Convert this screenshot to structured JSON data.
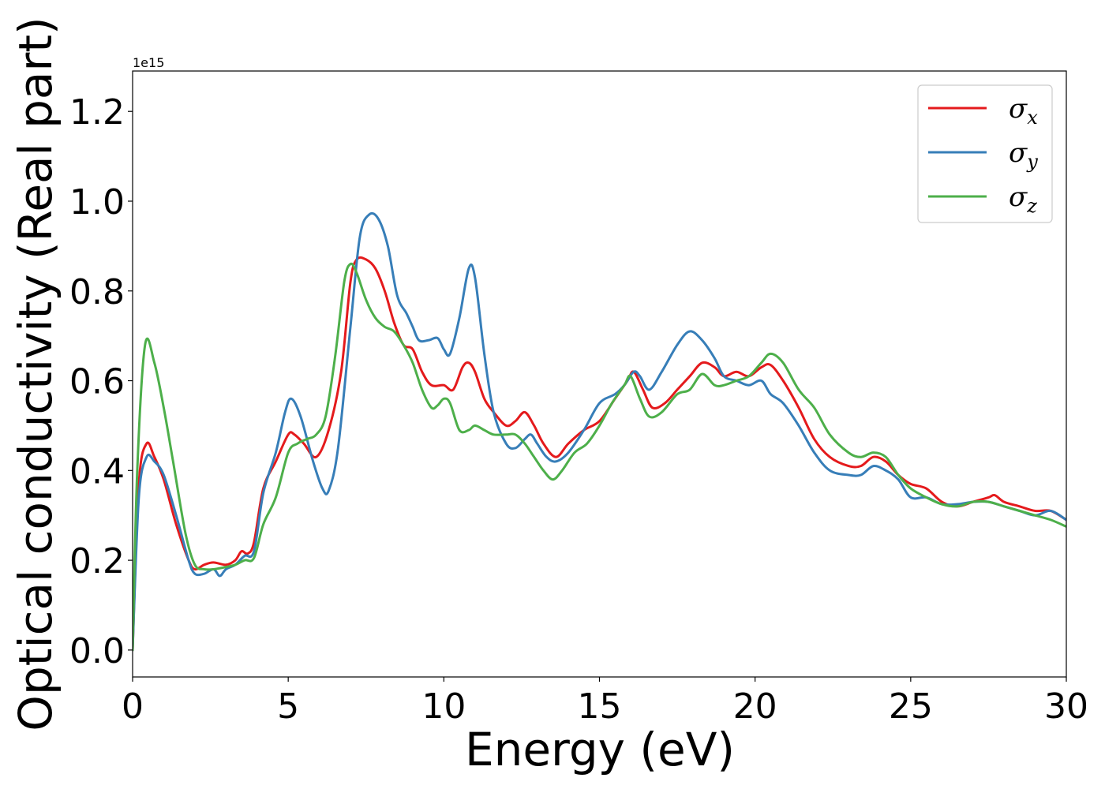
{
  "chart_data": {
    "type": "line",
    "xlabel": "Energy (eV)",
    "ylabel": "Optical conductivity (Real part)",
    "y_offset_label": "1e15",
    "xlim": [
      0,
      30
    ],
    "ylim": [
      -0.06,
      1.29
    ],
    "xticks": [
      0,
      5,
      10,
      15,
      20,
      25,
      30
    ],
    "yticks": [
      0.0,
      0.2,
      0.4,
      0.6,
      0.8,
      1.0,
      1.2
    ],
    "xtick_labels": [
      "0",
      "5",
      "10",
      "15",
      "20",
      "25",
      "30"
    ],
    "ytick_labels": [
      "0.0",
      "0.2",
      "0.4",
      "0.6",
      "0.8",
      "1.0",
      "1.2"
    ],
    "grid": false,
    "legend_position": "top-right",
    "series": [
      {
        "name": "σx",
        "symbol": "σ",
        "subscript": "x",
        "color": "#e41a1c",
        "x": [
          0,
          0.2,
          0.45,
          0.7,
          1.0,
          1.4,
          1.8,
          2.0,
          2.3,
          2.6,
          3.0,
          3.3,
          3.5,
          3.7,
          3.9,
          4.2,
          4.6,
          5.0,
          5.2,
          5.5,
          5.9,
          6.3,
          6.7,
          7.0,
          7.2,
          7.5,
          7.8,
          8.1,
          8.4,
          8.7,
          9.0,
          9.3,
          9.6,
          10.0,
          10.3,
          10.6,
          10.8,
          11.0,
          11.3,
          11.6,
          12.0,
          12.3,
          12.6,
          12.9,
          13.2,
          13.6,
          14.0,
          14.5,
          15.0,
          15.5,
          15.9,
          16.1,
          16.4,
          16.7,
          17.1,
          17.5,
          17.9,
          18.3,
          18.7,
          19.0,
          19.4,
          19.8,
          20.2,
          20.5,
          20.9,
          21.4,
          21.9,
          22.4,
          23.0,
          23.4,
          23.8,
          24.2,
          24.6,
          25.0,
          25.5,
          26.0,
          26.5,
          27.0,
          27.5,
          27.7,
          28.0,
          28.5,
          29.0,
          29.5,
          30.0
        ],
        "y": [
          0.0,
          0.37,
          0.46,
          0.43,
          0.38,
          0.28,
          0.2,
          0.18,
          0.19,
          0.195,
          0.19,
          0.2,
          0.22,
          0.215,
          0.24,
          0.36,
          0.42,
          0.48,
          0.48,
          0.46,
          0.43,
          0.49,
          0.62,
          0.82,
          0.87,
          0.87,
          0.85,
          0.8,
          0.73,
          0.68,
          0.67,
          0.62,
          0.59,
          0.59,
          0.58,
          0.63,
          0.64,
          0.62,
          0.56,
          0.53,
          0.5,
          0.51,
          0.53,
          0.5,
          0.46,
          0.43,
          0.46,
          0.49,
          0.51,
          0.56,
          0.6,
          0.62,
          0.58,
          0.54,
          0.55,
          0.58,
          0.61,
          0.64,
          0.63,
          0.61,
          0.62,
          0.61,
          0.63,
          0.635,
          0.6,
          0.54,
          0.47,
          0.43,
          0.41,
          0.41,
          0.43,
          0.42,
          0.39,
          0.37,
          0.36,
          0.33,
          0.32,
          0.33,
          0.34,
          0.345,
          0.33,
          0.32,
          0.31,
          0.31,
          0.29
        ]
      },
      {
        "name": "σy",
        "symbol": "σ",
        "subscript": "y",
        "color": "#377eb8",
        "x": [
          0,
          0.2,
          0.45,
          0.7,
          1.0,
          1.4,
          1.8,
          2.0,
          2.3,
          2.6,
          2.8,
          3.0,
          3.3,
          3.6,
          3.9,
          4.2,
          4.6,
          4.9,
          5.1,
          5.4,
          5.8,
          6.1,
          6.3,
          6.6,
          7.0,
          7.3,
          7.6,
          7.9,
          8.2,
          8.5,
          8.8,
          9.0,
          9.2,
          9.5,
          9.8,
          10.0,
          10.2,
          10.5,
          10.8,
          11.0,
          11.3,
          11.6,
          12.0,
          12.3,
          12.6,
          12.8,
          13.0,
          13.3,
          13.6,
          14.0,
          14.5,
          15.0,
          15.5,
          15.8,
          16.1,
          16.3,
          16.6,
          17.0,
          17.5,
          17.9,
          18.3,
          18.7,
          19.0,
          19.4,
          19.8,
          20.2,
          20.5,
          20.9,
          21.4,
          21.9,
          22.4,
          23.0,
          23.4,
          23.8,
          24.2,
          24.6,
          25.0,
          25.5,
          26.0,
          26.5,
          27.0,
          27.5,
          28.0,
          28.5,
          29.0,
          29.5,
          30.0
        ],
        "y": [
          0.0,
          0.34,
          0.43,
          0.42,
          0.39,
          0.3,
          0.2,
          0.17,
          0.17,
          0.18,
          0.165,
          0.18,
          0.19,
          0.21,
          0.22,
          0.35,
          0.44,
          0.53,
          0.56,
          0.52,
          0.42,
          0.36,
          0.355,
          0.45,
          0.72,
          0.92,
          0.97,
          0.96,
          0.9,
          0.79,
          0.75,
          0.72,
          0.69,
          0.69,
          0.695,
          0.67,
          0.66,
          0.74,
          0.85,
          0.83,
          0.66,
          0.53,
          0.46,
          0.45,
          0.47,
          0.48,
          0.46,
          0.43,
          0.42,
          0.44,
          0.49,
          0.55,
          0.57,
          0.59,
          0.62,
          0.61,
          0.58,
          0.62,
          0.68,
          0.71,
          0.69,
          0.65,
          0.61,
          0.6,
          0.59,
          0.6,
          0.57,
          0.55,
          0.5,
          0.44,
          0.4,
          0.39,
          0.39,
          0.41,
          0.4,
          0.38,
          0.34,
          0.34,
          0.325,
          0.325,
          0.33,
          0.33,
          0.32,
          0.31,
          0.3,
          0.31,
          0.29
        ]
      },
      {
        "name": "σz",
        "symbol": "σ",
        "subscript": "z",
        "color": "#4daf4a",
        "x": [
          0,
          0.15,
          0.4,
          0.7,
          1.0,
          1.3,
          1.7,
          2.0,
          2.3,
          2.6,
          3.0,
          3.3,
          3.6,
          3.9,
          4.2,
          4.6,
          5.0,
          5.3,
          5.6,
          5.9,
          6.2,
          6.5,
          6.8,
          7.0,
          7.2,
          7.5,
          7.8,
          8.1,
          8.4,
          8.7,
          9.0,
          9.3,
          9.6,
          9.8,
          10.0,
          10.2,
          10.5,
          10.8,
          11.0,
          11.3,
          11.6,
          12.0,
          12.3,
          12.6,
          12.9,
          13.2,
          13.5,
          13.8,
          14.2,
          14.6,
          15.0,
          15.4,
          15.8,
          16.0,
          16.3,
          16.6,
          17.0,
          17.5,
          17.9,
          18.3,
          18.7,
          19.0,
          19.4,
          19.8,
          20.2,
          20.5,
          20.9,
          21.4,
          21.9,
          22.4,
          23.0,
          23.4,
          23.8,
          24.2,
          24.6,
          25.0,
          25.5,
          26.0,
          26.5,
          27.0,
          27.5,
          28.0,
          28.5,
          29.0,
          29.5,
          30.0
        ],
        "y": [
          0.0,
          0.4,
          0.68,
          0.64,
          0.54,
          0.42,
          0.26,
          0.19,
          0.18,
          0.18,
          0.185,
          0.19,
          0.2,
          0.205,
          0.28,
          0.34,
          0.44,
          0.46,
          0.47,
          0.48,
          0.52,
          0.65,
          0.82,
          0.86,
          0.84,
          0.78,
          0.74,
          0.72,
          0.71,
          0.68,
          0.64,
          0.58,
          0.54,
          0.545,
          0.56,
          0.55,
          0.49,
          0.49,
          0.5,
          0.49,
          0.48,
          0.48,
          0.48,
          0.46,
          0.43,
          0.4,
          0.38,
          0.4,
          0.44,
          0.46,
          0.5,
          0.55,
          0.59,
          0.61,
          0.56,
          0.52,
          0.53,
          0.57,
          0.58,
          0.615,
          0.59,
          0.59,
          0.6,
          0.61,
          0.64,
          0.66,
          0.64,
          0.58,
          0.54,
          0.48,
          0.44,
          0.43,
          0.44,
          0.43,
          0.39,
          0.36,
          0.34,
          0.325,
          0.32,
          0.33,
          0.33,
          0.32,
          0.31,
          0.3,
          0.29,
          0.275
        ]
      }
    ]
  }
}
